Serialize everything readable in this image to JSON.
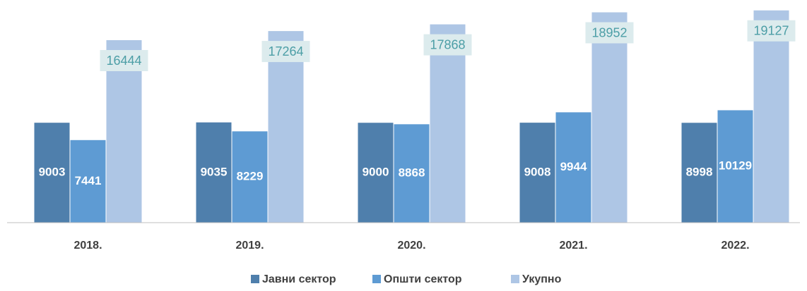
{
  "chart_data": {
    "type": "bar",
    "categories": [
      "2018.",
      "2019.",
      "2020.",
      "2021.",
      "2022."
    ],
    "series": [
      {
        "name": "Јавни сектор",
        "color": "#4f7fac",
        "values": [
          9003,
          9035,
          9000,
          9008,
          8998
        ]
      },
      {
        "name": "Општи сектор",
        "color": "#5e9bd3",
        "values": [
          7441,
          8229,
          8868,
          9944,
          10129
        ]
      },
      {
        "name": "Укупно",
        "color": "#aec6e5",
        "values": [
          16444,
          17264,
          17868,
          18952,
          19127
        ]
      }
    ],
    "ylim": [
      0,
      20000
    ],
    "legend": "bottom"
  }
}
